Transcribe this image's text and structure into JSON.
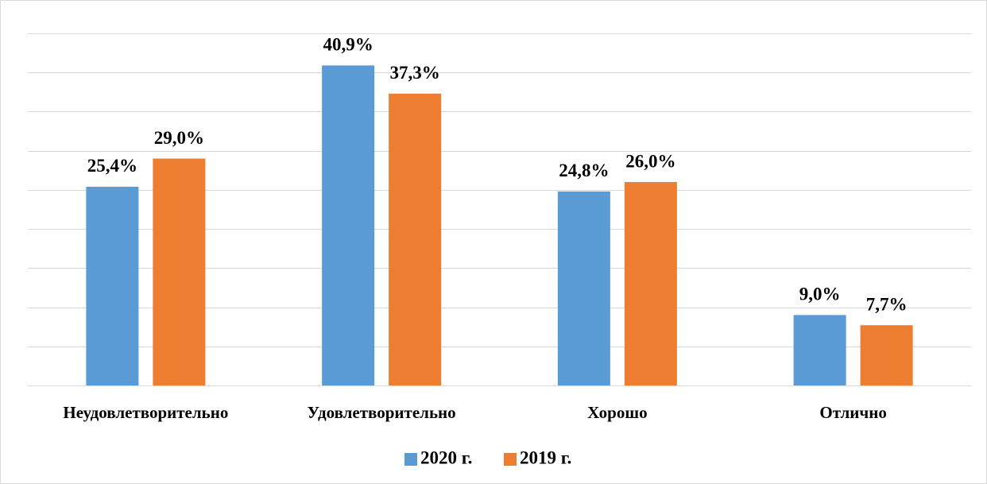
{
  "chart_data": {
    "type": "bar",
    "categories": [
      "Неудовлетворительно",
      "Удовлетворительно",
      "Хорошо",
      "Отлично"
    ],
    "series": [
      {
        "name": "2020 г.",
        "color": "#5b9bd5",
        "values": [
          25.4,
          40.9,
          24.8,
          9.0
        ],
        "value_labels": [
          "25,4%",
          "40,9%",
          "24,8%",
          "9,0%"
        ]
      },
      {
        "name": "2019 г.",
        "color": "#ed7d31",
        "values": [
          29.0,
          37.3,
          26.0,
          7.7
        ],
        "value_labels": [
          "29,0%",
          "37,3%",
          "26,0%",
          "7,7%"
        ]
      }
    ],
    "ylim": [
      0,
      45
    ],
    "yticks": [
      0,
      5,
      10,
      15,
      20,
      25,
      30,
      35,
      40,
      45
    ],
    "grid": true,
    "legend": "bottom"
  }
}
